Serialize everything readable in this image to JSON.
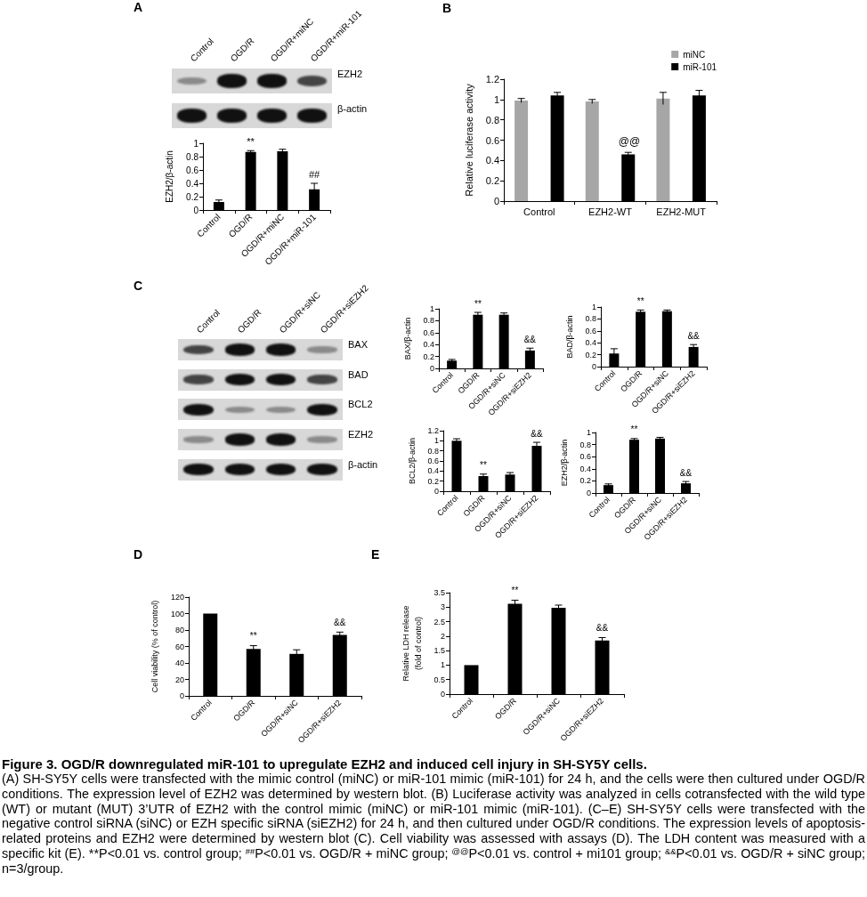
{
  "chart_data": [
    {
      "type": "other",
      "title": "A",
      "categories": [
        "Control",
        "OGD/R",
        "OGD/R+miNC",
        "OGD/R+miR-101"
      ],
      "annotations": [
        "EZH2",
        "β-actin"
      ]
    },
    {
      "type": "bar",
      "categories": [
        "Control",
        "OGD/R",
        "OGD/R+miNC",
        "OGD/R+miR-101"
      ],
      "values": [
        0.12,
        0.87,
        0.88,
        0.31
      ],
      "errors": [
        0.03,
        0.02,
        0.03,
        0.09
      ],
      "color": "#000000",
      "ylabel": "EZH2/β-actin",
      "ylim": [
        0,
        1
      ],
      "yticks": [
        0,
        0.2,
        0.4,
        0.6,
        0.8,
        1
      ],
      "annotations": [
        {
          "text": "**",
          "x": "OGD/R",
          "y": 0.87
        },
        {
          "text": "##",
          "x": "OGD/R+miR-101",
          "y": 0.31
        }
      ]
    },
    {
      "type": "bar",
      "title": "B",
      "categories": [
        "Control",
        "EZH2-WT",
        "EZH2-MUT"
      ],
      "series": [
        {
          "name": "miNC",
          "color": "#a6a6a6",
          "values": [
            0.99,
            0.98,
            1.01
          ],
          "errors": [
            0.02,
            0.02,
            0.06
          ]
        },
        {
          "name": "miR-101",
          "color": "#000000",
          "values": [
            1.04,
            0.46,
            1.04
          ],
          "errors": [
            0.03,
            0.02,
            0.05
          ]
        }
      ],
      "ylabel": "Relative luciferase activity",
      "ylim": [
        0,
        1.2
      ],
      "yticks": [
        0,
        0.2,
        0.4,
        0.6,
        0.8,
        1,
        1.2
      ],
      "legend": "top right",
      "annotations": [
        "@@"
      ]
    },
    {
      "type": "other",
      "title": "C",
      "categories": [
        "Control",
        "OGD/R",
        "OGD/R+siNC",
        "OGD/R+siEZH2"
      ],
      "annotations": [
        "BAX",
        "BAD",
        "BCL2",
        "EZH2",
        "β-actin"
      ]
    },
    {
      "type": "bar",
      "categories": [
        "Control",
        "OGD/R",
        "OGD/R+siNC",
        "OGD/R+siEZH2"
      ],
      "values": [
        0.13,
        0.9,
        0.9,
        0.3
      ],
      "errors": [
        0.02,
        0.04,
        0.03,
        0.04
      ],
      "color": "#000000",
      "ylabel": "BAX/β-actin",
      "ylim": [
        0,
        1
      ],
      "yticks": [
        0,
        0.2,
        0.4,
        0.6,
        0.8,
        1
      ],
      "annotations": [
        {
          "text": "**",
          "x": "OGD/R",
          "y": 0.9
        },
        {
          "text": "&&",
          "x": "OGD/R+siEZH2",
          "y": 0.3
        }
      ]
    },
    {
      "type": "bar",
      "categories": [
        "Control",
        "OGD/R",
        "OGD/R+siNC",
        "OGD/R+siEZH2"
      ],
      "values": [
        0.22,
        0.92,
        0.93,
        0.33
      ],
      "errors": [
        0.08,
        0.03,
        0.02,
        0.04
      ],
      "color": "#000000",
      "ylabel": "BAD/β-actin",
      "ylim": [
        0,
        1
      ],
      "yticks": [
        0,
        0.2,
        0.4,
        0.6,
        0.8,
        1
      ],
      "annotations": [
        {
          "text": "**",
          "x": "OGD/R",
          "y": 0.92
        },
        {
          "text": "&&",
          "x": "OGD/R+siEZH2",
          "y": 0.33
        }
      ]
    },
    {
      "type": "bar",
      "categories": [
        "Control",
        "OGD/R",
        "OGD/R+siNC",
        "OGD/R+siEZH2"
      ],
      "values": [
        1,
        0.3,
        0.33,
        0.9
      ],
      "errors": [
        0.04,
        0.04,
        0.04,
        0.07
      ],
      "color": "#000000",
      "ylabel": "BCL2/β-actin",
      "ylim": [
        0,
        1.2
      ],
      "yticks": [
        0,
        0.2,
        0.4,
        0.6,
        0.8,
        1,
        1.2
      ],
      "annotations": [
        {
          "text": "**",
          "x": "OGD/R",
          "y": 0.3
        },
        {
          "text": "&&",
          "x": "OGD/R+siEZH2",
          "y": 0.9
        }
      ]
    },
    {
      "type": "bar",
      "categories": [
        "Control",
        "OGD/R",
        "OGD/R+siNC",
        "OGD/R+siEZH2"
      ],
      "values": [
        0.13,
        0.88,
        0.9,
        0.16
      ],
      "errors": [
        0.02,
        0.02,
        0.02,
        0.03
      ],
      "color": "#000000",
      "ylabel": "EZH2/β-actin",
      "ylim": [
        0,
        1
      ],
      "yticks": [
        0,
        0.2,
        0.4,
        0.6,
        0.8,
        1
      ],
      "annotations": [
        {
          "text": "**",
          "x": "OGD/R",
          "y": 0.88
        },
        {
          "text": "&&",
          "x": "OGD/R+siEZH2",
          "y": 0.16
        }
      ]
    },
    {
      "type": "bar",
      "title": "D",
      "categories": [
        "Control",
        "OGD/R",
        "OGD/R+siNC",
        "OGD/R+siEZH2"
      ],
      "values": [
        100,
        57,
        51,
        74
      ],
      "errors": [
        null,
        4,
        5,
        3.5
      ],
      "color": "#000000",
      "ylabel": "Cell viability (% of control)",
      "ylim": [
        0,
        120
      ],
      "yticks": [
        0,
        20,
        40,
        60,
        80,
        100,
        120
      ],
      "annotations": [
        {
          "text": "**",
          "x": "OGD/R",
          "y": 57
        },
        {
          "text": "&&",
          "x": "OGD/R+siEZH2",
          "y": 74
        }
      ]
    },
    {
      "type": "bar",
      "title": "E",
      "categories": [
        "Control",
        "OGD/R",
        "OGD/R+siNC",
        "OGD/R+siEZH2"
      ],
      "values": [
        1,
        3.12,
        2.98,
        1.85
      ],
      "errors": [
        null,
        0.12,
        0.09,
        0.1
      ],
      "color": "#000000",
      "ylabel": "Relative LDH release\n(fold of control)",
      "ylim": [
        0,
        3.5
      ],
      "yticks": [
        0,
        0.5,
        1,
        1.5,
        2,
        2.5,
        3,
        3.5
      ],
      "annotations": [
        {
          "text": "**",
          "x": "OGD/R",
          "y": 3.12
        },
        {
          "text": "&&",
          "x": "OGD/R+siEZH2",
          "y": 1.85
        }
      ]
    },
    {
      "type": "other",
      "title": "Figure 3. OGD/R downregulated miR-101 to upregulate EZH2 and induced cell injury in SH-SY5Y cells.",
      "annotations": [
        "(A) SH-SY5Y cells were transfected with the mimic control (miNC) or miR-101 mimic (miR-101) for 24 h, and the cells were then cultured under OGD/R conditions. The expression level of EZH2 was determined by western blot. (B) Luciferase activity was analyzed in cells cotransfected with the wild type (WT) or mutant (MUT) 3’UTR of EZH2 with the control mimic (miNC) or miR-101 mimic (miR-101). (C–E) SH-SY5Y cells were transfected with the negative control siRNA (siNC) or EZH specific siRNA (siEZH2) for 24 h, and then cultured under OGD/R conditions. The expression levels of apoptosis-related proteins and EZH2 were determined by western blot (C). Cell viability was assessed with assays (D). The LDH content was measured with a specific kit (E). **P<0.01 vs. control group; $^{##}$P<0.01 vs. OGD/R + miNC group; $^{@@}$P<0.01 vs. control + mi101 group; $^{&&}$P<0.01 vs. OGD/R + siNC group; n=3/group."
      ]
    }
  ]
}
